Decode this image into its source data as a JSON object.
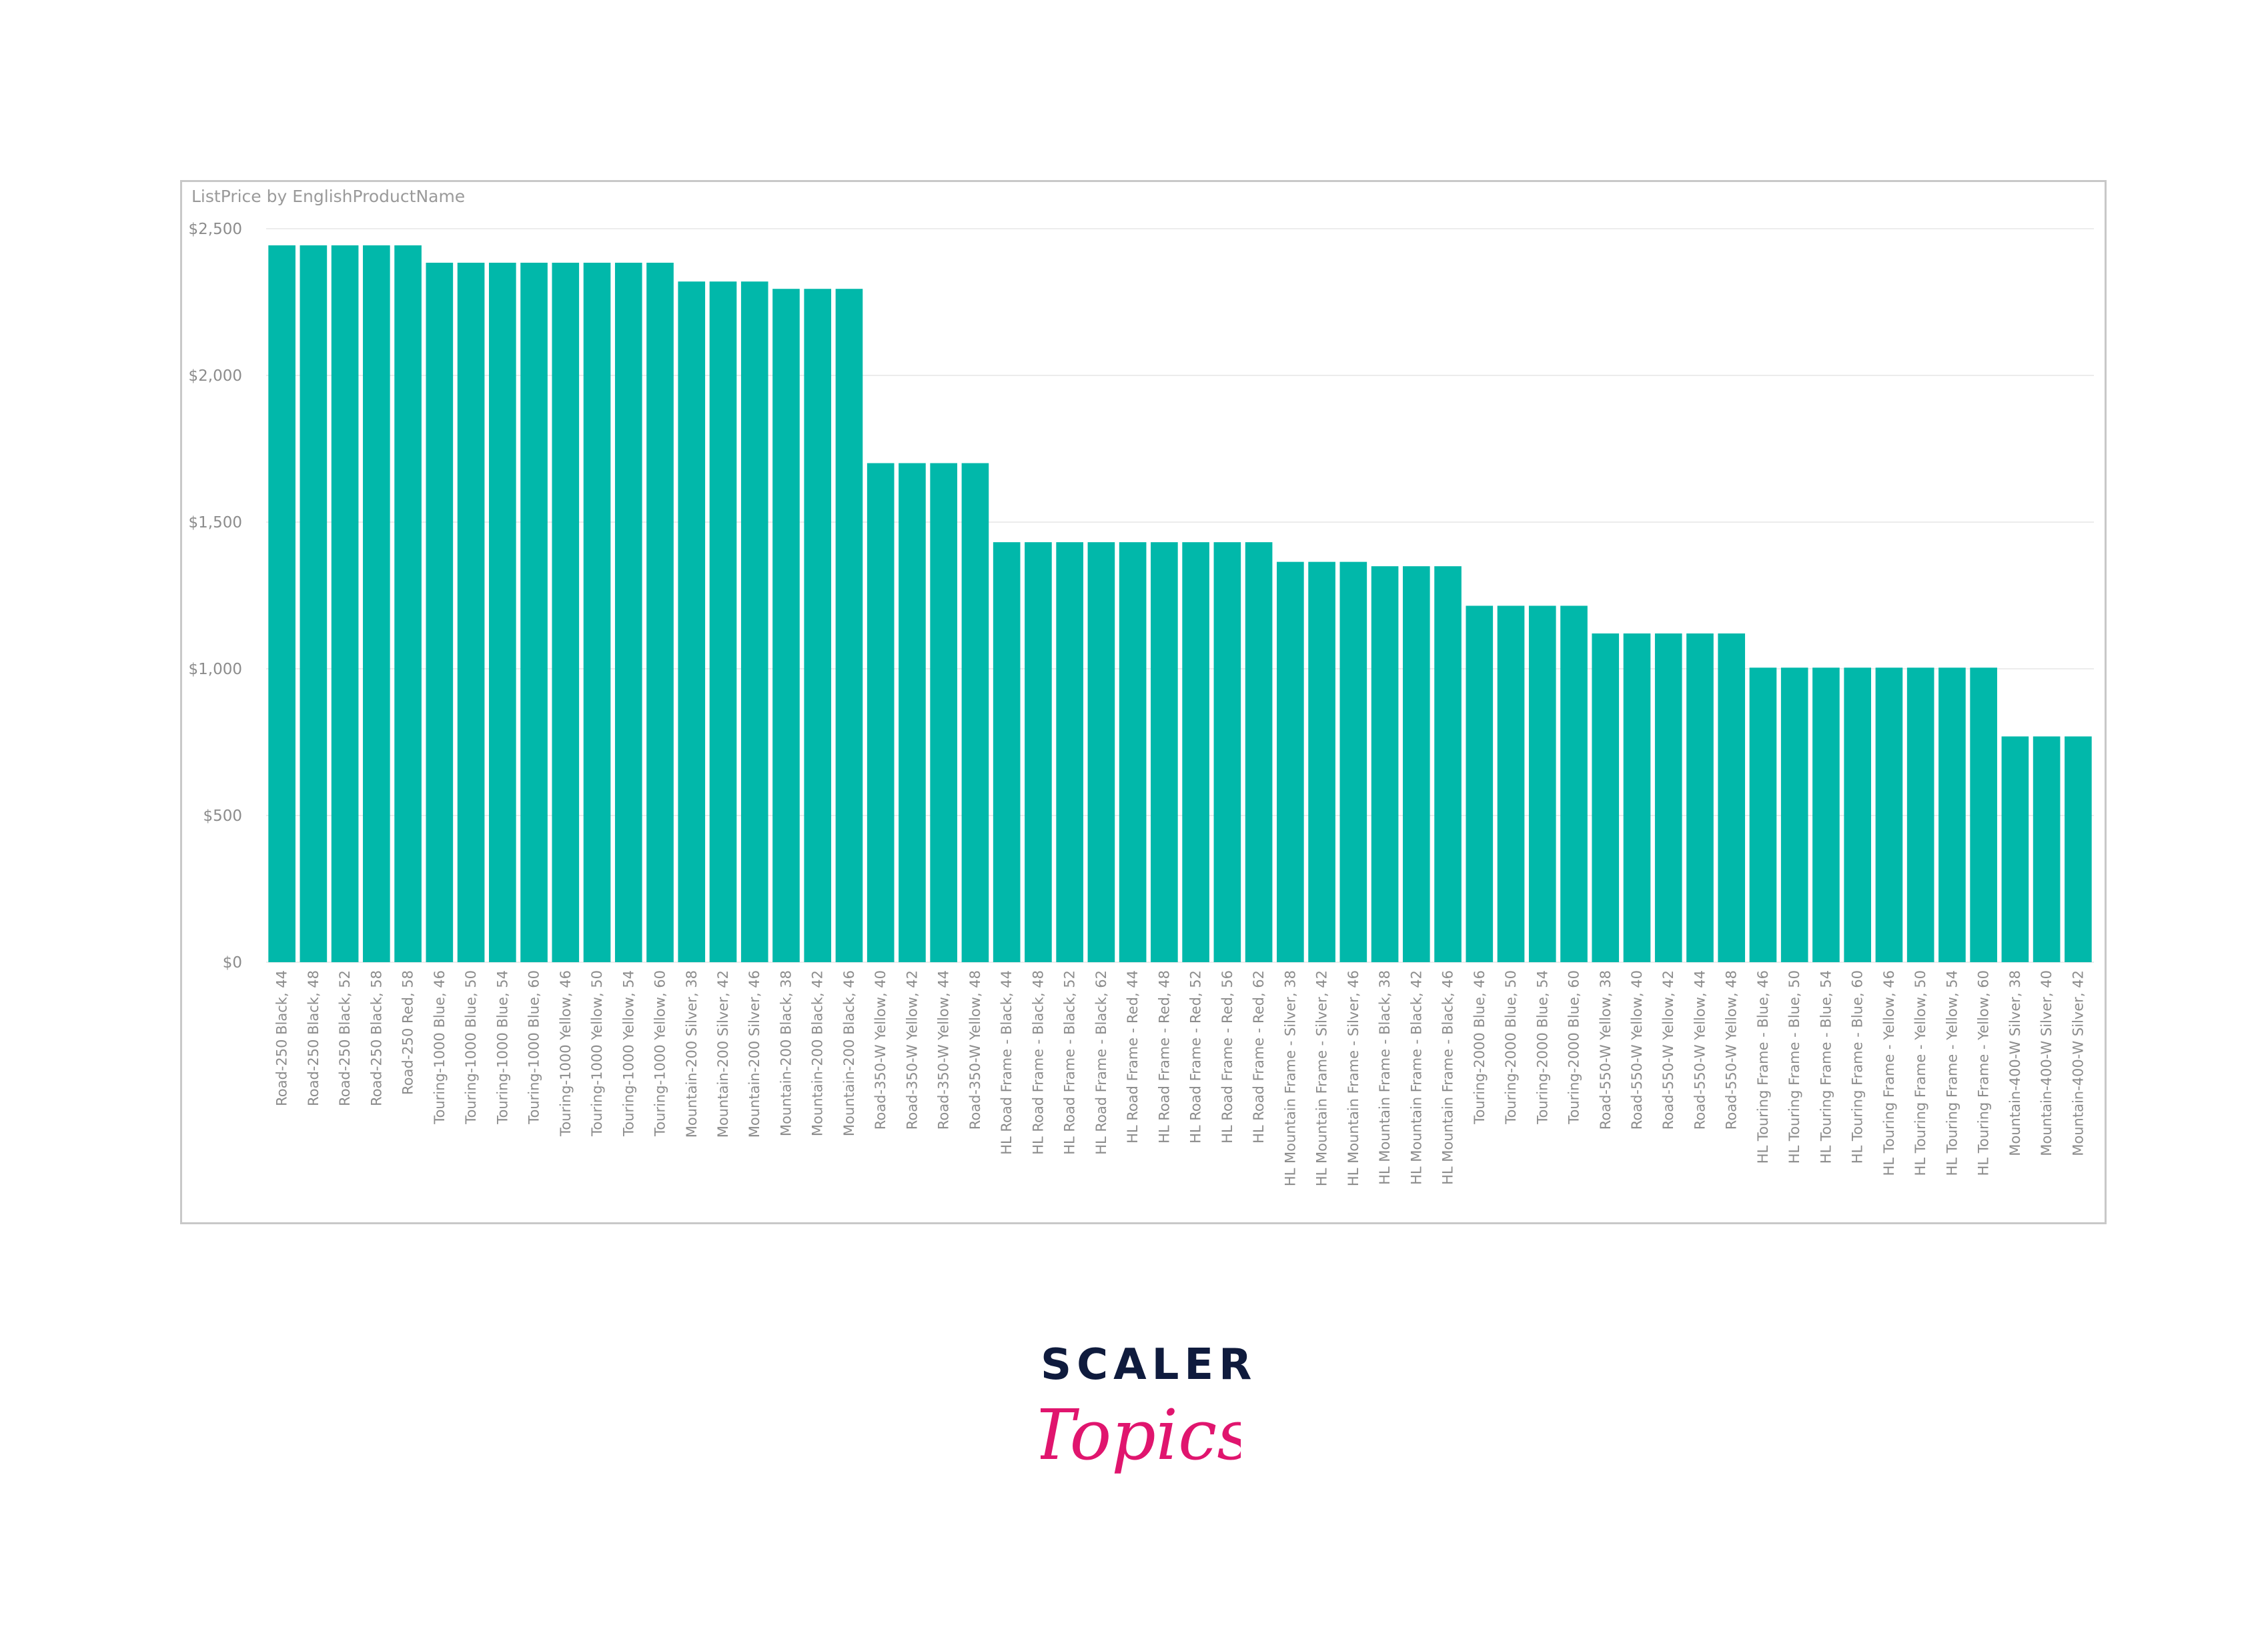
{
  "colors": {
    "bar": "#01b8aa",
    "brand_dark": "#0f1b3d",
    "brand_pink": "#e0156e"
  },
  "brand": {
    "line1": "SCALER",
    "line2": "Topics"
  },
  "chart_data": {
    "type": "bar",
    "title": "ListPrice by EnglishProductName",
    "xlabel": "",
    "ylabel": "",
    "ylim": [
      0,
      2500
    ],
    "yticks": [
      0,
      500,
      1000,
      1500,
      2000,
      2500
    ],
    "ytick_labels": [
      "$0",
      "$500",
      "$1,000",
      "$1,500",
      "$2,000",
      "$2,500"
    ],
    "grid": true,
    "legend": "none",
    "categories": [
      "Road-250 Black, 44",
      "Road-250 Black, 48",
      "Road-250 Black, 52",
      "Road-250 Black, 58",
      "Road-250 Red, 58",
      "Touring-1000 Blue, 46",
      "Touring-1000 Blue, 50",
      "Touring-1000 Blue, 54",
      "Touring-1000 Blue, 60",
      "Touring-1000 Yellow, 46",
      "Touring-1000 Yellow, 50",
      "Touring-1000 Yellow, 54",
      "Touring-1000 Yellow, 60",
      "Mountain-200 Silver, 38",
      "Mountain-200 Silver, 42",
      "Mountain-200 Silver, 46",
      "Mountain-200 Black, 38",
      "Mountain-200 Black, 42",
      "Mountain-200 Black, 46",
      "Road-350-W Yellow, 40",
      "Road-350-W Yellow, 42",
      "Road-350-W Yellow, 44",
      "Road-350-W Yellow, 48",
      "HL Road Frame - Black, 44",
      "HL Road Frame - Black, 48",
      "HL Road Frame - Black, 52",
      "HL Road Frame - Black, 62",
      "HL Road Frame - Red, 44",
      "HL Road Frame - Red, 48",
      "HL Road Frame - Red, 52",
      "HL Road Frame - Red, 56",
      "HL Road Frame - Red, 62",
      "HL Mountain Frame - Silver, 38",
      "HL Mountain Frame - Silver, 42",
      "HL Mountain Frame - Silver, 46",
      "HL Mountain Frame - Black, 38",
      "HL Mountain Frame - Black, 42",
      "HL Mountain Frame - Black, 46",
      "Touring-2000 Blue, 46",
      "Touring-2000 Blue, 50",
      "Touring-2000 Blue, 54",
      "Touring-2000 Blue, 60",
      "Road-550-W Yellow, 38",
      "Road-550-W Yellow, 40",
      "Road-550-W Yellow, 42",
      "Road-550-W Yellow, 44",
      "Road-550-W Yellow, 48",
      "HL Touring Frame - Blue, 46",
      "HL Touring Frame - Blue, 50",
      "HL Touring Frame - Blue, 54",
      "HL Touring Frame - Blue, 60",
      "HL Touring Frame - Yellow, 46",
      "HL Touring Frame - Yellow, 50",
      "HL Touring Frame - Yellow, 54",
      "HL Touring Frame - Yellow, 60",
      "Mountain-400-W Silver, 38",
      "Mountain-400-W Silver, 40",
      "Mountain-400-W Silver, 42"
    ],
    "values": [
      2443.35,
      2443.35,
      2443.35,
      2443.35,
      2443.35,
      2384.07,
      2384.07,
      2384.07,
      2384.07,
      2384.07,
      2384.07,
      2384.07,
      2384.07,
      2319.99,
      2319.99,
      2319.99,
      2294.99,
      2294.99,
      2294.99,
      1700.99,
      1700.99,
      1700.99,
      1700.99,
      1431.5,
      1431.5,
      1431.5,
      1431.5,
      1431.5,
      1431.5,
      1431.5,
      1431.5,
      1431.5,
      1364.5,
      1364.5,
      1364.5,
      1349.6,
      1349.6,
      1349.6,
      1214.85,
      1214.85,
      1214.85,
      1214.85,
      1120.49,
      1120.49,
      1120.49,
      1120.49,
      1120.49,
      1003.91,
      1003.91,
      1003.91,
      1003.91,
      1003.91,
      1003.91,
      1003.91,
      1003.91,
      769.49,
      769.49,
      769.49
    ]
  }
}
